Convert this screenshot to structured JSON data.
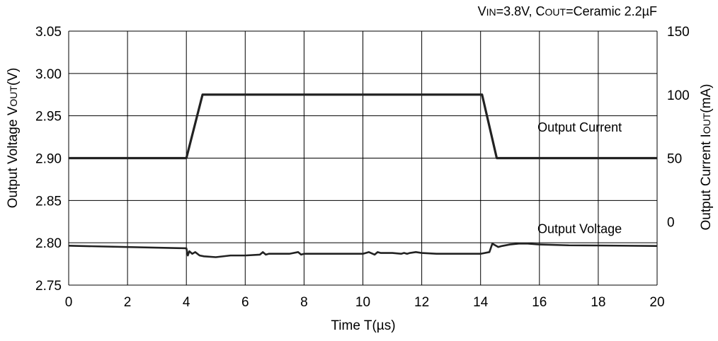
{
  "chart_data": {
    "type": "line",
    "title": "",
    "condition": {
      "vin_main": "V",
      "vin_sub": "IN",
      "vin_value": "=3.8V, ",
      "cout_main": "C",
      "cout_sub": "OUT",
      "cout_value": "=Ceramic 2.2µF"
    },
    "x_axis": {
      "label": "Time T(µs)",
      "range": [
        0,
        20
      ],
      "ticks": [
        0,
        2,
        4,
        6,
        8,
        10,
        12,
        14,
        16,
        18,
        20
      ],
      "tick_labels": [
        "0",
        "2",
        "4",
        "6",
        "8",
        "10",
        "12",
        "14",
        "16",
        "18",
        "20"
      ]
    },
    "y_left": {
      "label_main": "Output Voltage V",
      "label_sub": "OUT",
      "label_unit": "(V)",
      "range": [
        2.75,
        3.05
      ],
      "ticks": [
        2.75,
        2.8,
        2.85,
        2.9,
        2.95,
        3.0,
        3.05
      ],
      "tick_labels": [
        "2.75",
        "2.80",
        "2.85",
        "2.90",
        "2.95",
        "3.00",
        "3.05"
      ]
    },
    "y_right": {
      "label_main": "Output Current I",
      "label_sub": "OUT",
      "label_unit": "(mA)",
      "range": [
        -50,
        150
      ],
      "ticks": [
        0,
        50,
        100,
        150
      ],
      "tick_labels": [
        "0",
        "50",
        "100",
        "150"
      ]
    },
    "grid": true,
    "series": [
      {
        "name": "Output Current",
        "axis": "right",
        "color": "#222222",
        "x": [
          0,
          4.0,
          4.55,
          14.05,
          14.55,
          20
        ],
        "y": [
          50,
          50,
          100,
          100,
          50,
          50
        ]
      },
      {
        "name": "Output Voltage",
        "axis": "left",
        "color": "#222222",
        "x": [
          0,
          4.0,
          4.05,
          4.1,
          4.2,
          4.3,
          4.45,
          4.6,
          5.0,
          5.5,
          6.0,
          6.5,
          6.6,
          6.7,
          6.8,
          7.0,
          7.5,
          7.8,
          7.9,
          8.0,
          9.0,
          10.0,
          10.2,
          10.4,
          10.5,
          10.6,
          10.8,
          11.0,
          11.3,
          11.4,
          11.5,
          11.6,
          11.8,
          12.0,
          12.5,
          13.0,
          14.0,
          14.3,
          14.4,
          14.5,
          14.6,
          14.7,
          15.0,
          15.3,
          15.6,
          16.0,
          17.0,
          18.0,
          20
        ],
        "y": [
          2.7965,
          2.7935,
          2.785,
          2.79,
          2.787,
          2.789,
          2.785,
          2.784,
          2.783,
          2.785,
          2.785,
          2.786,
          2.789,
          2.786,
          2.787,
          2.787,
          2.787,
          2.789,
          2.786,
          2.787,
          2.787,
          2.787,
          2.789,
          2.786,
          2.789,
          2.788,
          2.788,
          2.788,
          2.787,
          2.788,
          2.787,
          2.788,
          2.789,
          2.788,
          2.787,
          2.787,
          2.787,
          2.789,
          2.799,
          2.797,
          2.795,
          2.796,
          2.798,
          2.799,
          2.799,
          2.798,
          2.797,
          2.7968,
          2.7962
        ]
      }
    ],
    "annotations": [
      {
        "text": "Output Current",
        "x": 18.8,
        "y_right": 71
      },
      {
        "text": "Output Voltage",
        "x": 18.8,
        "y": 2.8115
      }
    ]
  }
}
